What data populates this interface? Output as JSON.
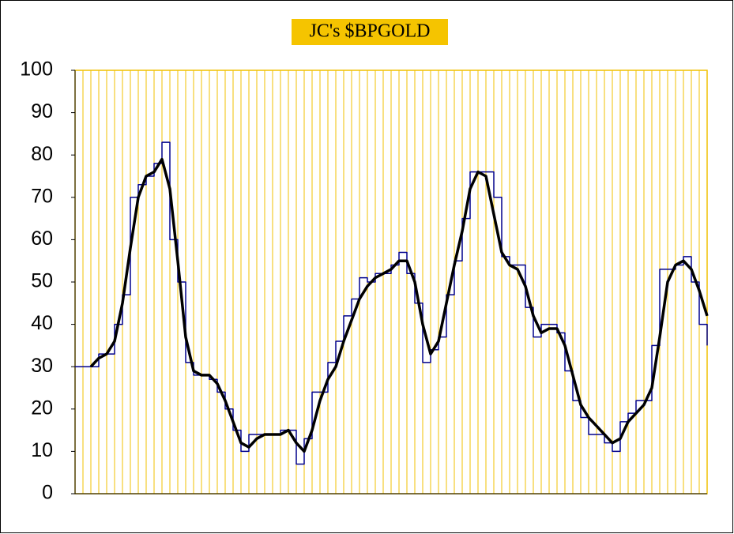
{
  "chart_data": {
    "type": "line",
    "title": "JC's $BPGOLD",
    "categories": [
      null,
      null,
      null,
      null,
      null,
      null,
      null,
      null,
      null,
      null,
      null,
      null,
      null,
      null,
      null,
      null,
      null,
      null,
      null,
      null,
      null,
      null,
      null,
      null,
      null,
      null,
      null,
      null,
      null,
      null,
      null,
      null,
      null,
      null,
      null,
      null,
      null,
      null,
      null,
      null,
      null,
      null,
      null,
      null,
      null,
      null,
      null,
      null,
      null,
      null,
      null,
      null,
      null,
      null,
      null,
      null,
      null,
      null,
      null,
      null,
      null,
      null,
      null,
      null,
      null,
      null,
      null,
      null,
      null,
      null,
      null,
      null,
      null,
      null,
      null,
      null,
      null,
      null,
      null,
      null,
      null
    ],
    "series": [
      {
        "color": "#00008b",
        "step": true,
        "values": [
          30,
          30,
          30,
          33,
          33,
          40,
          47,
          70,
          73,
          75,
          78,
          83,
          60,
          50,
          31,
          28,
          28,
          27,
          24,
          20,
          15,
          10,
          14,
          14,
          14,
          14,
          15,
          15,
          7,
          13,
          24,
          24,
          31,
          36,
          42,
          46,
          51,
          50,
          52,
          52,
          54,
          57,
          52,
          45,
          31,
          34,
          37,
          47,
          55,
          65,
          76,
          76,
          76,
          70,
          56,
          54,
          54,
          44,
          37,
          40,
          40,
          38,
          29,
          22,
          18,
          14,
          14,
          12,
          10,
          17,
          19,
          22,
          22,
          35,
          53,
          53,
          54,
          56,
          50,
          40,
          35
        ]
      },
      {
        "color": "#000000",
        "values": [
          null,
          null,
          30,
          32,
          33,
          36,
          45,
          58,
          70,
          75,
          76,
          79,
          72,
          55,
          37,
          29,
          28,
          28,
          26,
          22,
          17,
          12,
          11,
          13,
          14,
          14,
          14,
          15,
          12,
          10,
          15,
          22,
          27,
          30,
          36,
          41,
          46,
          49,
          51,
          52,
          53,
          55,
          55,
          50,
          40,
          33,
          36,
          45,
          54,
          62,
          72,
          76,
          75,
          66,
          57,
          54,
          53,
          49,
          42,
          38,
          39,
          39,
          35,
          28,
          21,
          18,
          16,
          14,
          12,
          13,
          17,
          19,
          21,
          25,
          37,
          50,
          54,
          55,
          53,
          48,
          42
        ]
      }
    ],
    "ylim": [
      0,
      100
    ],
    "yticks": [
      0,
      10,
      20,
      30,
      40,
      50,
      60,
      70,
      80,
      90,
      100
    ],
    "xgrid": true,
    "grid_color": "#f0c000",
    "title_background": "#f5c400"
  }
}
